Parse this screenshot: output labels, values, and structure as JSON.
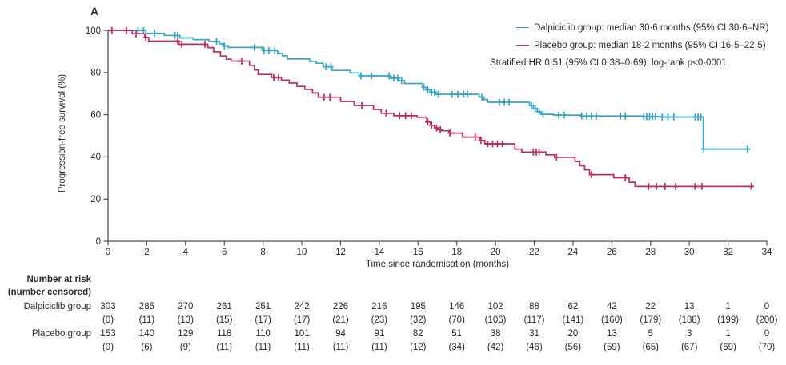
{
  "panel_label": "A",
  "colors": {
    "dalpiciclib": "#36a5c8",
    "placebo": "#be2b5d",
    "axis": "#4d4d4f",
    "text": "#2b2a29"
  },
  "legend": {
    "entries": [
      {
        "label": "Dalpiciclib group: median 30·6 months (95% CI 30·6–NR)",
        "color_key": "dalpiciclib"
      },
      {
        "label": "Placebo group: median 18·2 months (95% CI 16·5–22·5)",
        "color_key": "placebo"
      }
    ],
    "note": "Stratified HR 0·51 (95% CI 0·38–0·69); log-rank p<0·0001"
  },
  "chart_data": {
    "type": "line",
    "subtype": "kaplan-meier-step",
    "xlabel": "Time since randomisation (months)",
    "ylabel": "Progression-free survival (%)",
    "xlim": [
      0,
      34
    ],
    "ylim": [
      0,
      100
    ],
    "xticks": [
      0,
      2,
      4,
      6,
      8,
      10,
      12,
      14,
      16,
      18,
      20,
      22,
      24,
      26,
      28,
      30,
      32,
      34
    ],
    "yticks": [
      0,
      20,
      40,
      60,
      80,
      100
    ],
    "grid": false,
    "legend_position": "top-right",
    "series": [
      {
        "name": "Dalpiciclib group",
        "color": "#36a5c8",
        "start_value": 100,
        "end_month": 33.1,
        "steps": [
          [
            1.95,
            98.6
          ],
          [
            2.9,
            97.6
          ],
          [
            3.7,
            96.4
          ],
          [
            4.4,
            95.6
          ],
          [
            5.2,
            94.8
          ],
          [
            5.75,
            93.6
          ],
          [
            5.95,
            92.6
          ],
          [
            6.2,
            91.9
          ],
          [
            7.95,
            90.4
          ],
          [
            8.75,
            89.0
          ],
          [
            9.0,
            87.9
          ],
          [
            9.25,
            86.4
          ],
          [
            10.4,
            85.3
          ],
          [
            10.75,
            84.4
          ],
          [
            11.1,
            82.7
          ],
          [
            11.55,
            81.0
          ],
          [
            12.5,
            79.8
          ],
          [
            12.95,
            78.4
          ],
          [
            14.55,
            77.3
          ],
          [
            15.0,
            76.2
          ],
          [
            15.3,
            74.8
          ],
          [
            16.25,
            73.0
          ],
          [
            16.45,
            71.8
          ],
          [
            16.65,
            70.7
          ],
          [
            16.9,
            69.7
          ],
          [
            19.15,
            68.4
          ],
          [
            19.4,
            67.2
          ],
          [
            19.6,
            65.9
          ],
          [
            21.75,
            64.4
          ],
          [
            21.95,
            62.9
          ],
          [
            22.15,
            61.4
          ],
          [
            22.35,
            60.2
          ],
          [
            23.0,
            59.8
          ],
          [
            24.4,
            59.4
          ],
          [
            27.6,
            59.1
          ],
          [
            28.5,
            58.9
          ],
          [
            30.72,
            43.7
          ]
        ],
        "censor_months": [
          1.55,
          1.83,
          2.4,
          3.45,
          3.6,
          5.6,
          6.0,
          7.55,
          8.05,
          8.3,
          8.6,
          11.25,
          11.5,
          13.05,
          13.6,
          14.5,
          14.75,
          14.95,
          15.15,
          16.3,
          16.5,
          16.7,
          16.85,
          17.05,
          17.75,
          18.05,
          18.35,
          18.55,
          19.3,
          20.2,
          20.45,
          20.7,
          21.85,
          22.05,
          22.25,
          22.45,
          23.25,
          23.55,
          24.45,
          24.7,
          24.95,
          25.2,
          26.45,
          26.7,
          27.65,
          27.8,
          27.95,
          28.1,
          28.25,
          28.6,
          28.9,
          29.2,
          30.3,
          30.45,
          30.6,
          30.75,
          33.0
        ]
      },
      {
        "name": "Placebo group",
        "color": "#be2b5d",
        "start_value": 100,
        "end_month": 33.3,
        "steps": [
          [
            1.25,
            98.4
          ],
          [
            1.9,
            96.6
          ],
          [
            2.1,
            94.9
          ],
          [
            3.65,
            93.4
          ],
          [
            5.15,
            91.8
          ],
          [
            5.45,
            89.8
          ],
          [
            5.8,
            87.8
          ],
          [
            6.1,
            86.3
          ],
          [
            6.35,
            85.4
          ],
          [
            7.3,
            83.4
          ],
          [
            7.55,
            81.2
          ],
          [
            7.75,
            79.1
          ],
          [
            8.45,
            77.6
          ],
          [
            8.95,
            76.4
          ],
          [
            9.35,
            75.0
          ],
          [
            9.75,
            73.4
          ],
          [
            10.15,
            72.0
          ],
          [
            10.55,
            70.3
          ],
          [
            10.85,
            68.3
          ],
          [
            12.0,
            66.3
          ],
          [
            12.7,
            64.4
          ],
          [
            13.7,
            62.5
          ],
          [
            14.1,
            60.7
          ],
          [
            14.75,
            59.5
          ],
          [
            15.95,
            58.8
          ],
          [
            16.45,
            56.5
          ],
          [
            16.65,
            55.0
          ],
          [
            16.85,
            53.8
          ],
          [
            17.0,
            52.9
          ],
          [
            17.2,
            52.4
          ],
          [
            17.6,
            51.3
          ],
          [
            18.3,
            49.4
          ],
          [
            19.2,
            47.8
          ],
          [
            19.45,
            46.2
          ],
          [
            21.0,
            43.7
          ],
          [
            21.35,
            42.3
          ],
          [
            22.6,
            41.0
          ],
          [
            23.05,
            39.8
          ],
          [
            24.1,
            37.8
          ],
          [
            24.35,
            35.8
          ],
          [
            24.6,
            33.9
          ],
          [
            24.85,
            31.6
          ],
          [
            26.1,
            30.1
          ],
          [
            26.9,
            28.0
          ],
          [
            27.2,
            26.0
          ]
        ],
        "censor_months": [
          0.2,
          0.95,
          1.45,
          1.95,
          3.6,
          3.8,
          5.0,
          6.9,
          8.55,
          8.8,
          11.15,
          11.45,
          13.1,
          14.35,
          15.05,
          15.35,
          15.65,
          16.5,
          16.7,
          16.95,
          17.15,
          17.65,
          18.95,
          19.25,
          19.6,
          19.85,
          20.1,
          20.35,
          21.95,
          22.1,
          22.25,
          23.15,
          24.95,
          26.7,
          27.9,
          28.3,
          28.75,
          29.3,
          30.3,
          30.65,
          33.2
        ]
      }
    ]
  },
  "at_risk_table": {
    "header_line1": "Number at risk",
    "header_line2": "(number censored)",
    "time_points": [
      0,
      2,
      4,
      6,
      8,
      10,
      12,
      14,
      16,
      18,
      20,
      22,
      24,
      26,
      28,
      30,
      32,
      34
    ],
    "rows": [
      {
        "label": "Dalpiciclib group",
        "at_risk": [
          "303",
          "285",
          "270",
          "261",
          "251",
          "242",
          "226",
          "216",
          "195",
          "146",
          "102",
          "88",
          "62",
          "42",
          "22",
          "13",
          "1",
          "0"
        ],
        "censored": [
          "(0)",
          "(11)",
          "(13)",
          "(15)",
          "(17)",
          "(17)",
          "(21)",
          "(23)",
          "(32)",
          "(70)",
          "(106)",
          "(117)",
          "(141)",
          "(160)",
          "(179)",
          "(188)",
          "(199)",
          "(200)"
        ]
      },
      {
        "label": "Placebo group",
        "at_risk": [
          "153",
          "140",
          "129",
          "118",
          "110",
          "101",
          "94",
          "91",
          "82",
          "51",
          "38",
          "31",
          "20",
          "13",
          "5",
          "3",
          "1",
          "0"
        ],
        "censored": [
          "(0)",
          "(6)",
          "(9)",
          "(11)",
          "(11)",
          "(11)",
          "(11)",
          "(11)",
          "(12)",
          "(34)",
          "(42)",
          "(46)",
          "(56)",
          "(59)",
          "(65)",
          "(67)",
          "(69)",
          "(70)"
        ]
      }
    ]
  }
}
